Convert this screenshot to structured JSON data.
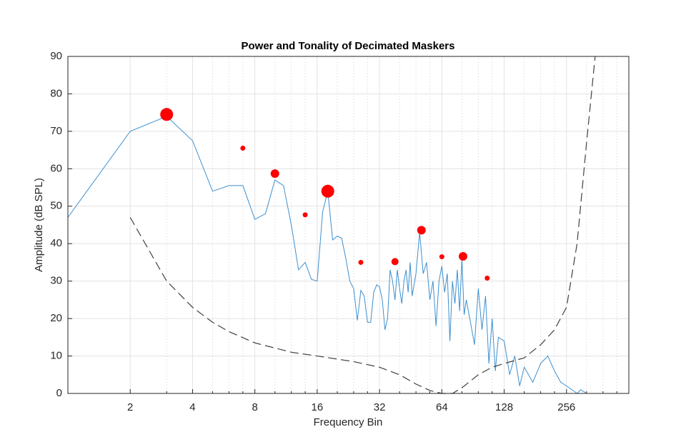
{
  "chart_data": {
    "type": "line",
    "title": "Power and Tonality of Decimated Maskers",
    "x_label": "Frequency Bin",
    "y_label": "Amplitude (dB SPL)",
    "xscale": "log",
    "xlim": [
      1,
      512
    ],
    "ylim": [
      0,
      90
    ],
    "xticks": [
      2,
      4,
      8,
      16,
      32,
      64,
      128,
      256
    ],
    "xminorticks": [
      3,
      5,
      6,
      7,
      10,
      12,
      14,
      20,
      24,
      28,
      40,
      48,
      56,
      80,
      96,
      112,
      160,
      192,
      224,
      320,
      384,
      448
    ],
    "yticks": [
      0,
      10,
      20,
      30,
      40,
      50,
      60,
      70,
      80,
      90
    ],
    "grid": true,
    "series": [
      {
        "type": "line",
        "color": "#3d8fce",
        "dashed": false,
        "x": [
          1,
          2,
          3,
          4,
          5,
          6,
          7,
          8,
          9,
          10,
          11,
          12,
          13,
          14,
          15,
          16,
          17,
          18,
          19,
          20,
          21,
          22,
          23,
          24,
          25,
          26,
          27,
          28,
          29,
          30,
          31,
          32,
          33,
          34,
          35,
          36,
          37,
          38,
          39,
          40,
          41,
          42,
          43,
          44,
          45,
          46,
          48,
          50,
          52,
          54,
          56,
          58,
          60,
          62,
          64,
          66,
          68,
          70,
          72,
          74,
          76,
          78,
          80,
          82,
          84,
          88,
          92,
          96,
          100,
          104,
          108,
          112,
          116,
          120,
          128,
          136,
          144,
          152,
          160,
          176,
          192,
          208,
          224,
          240,
          256,
          272,
          288,
          300,
          320,
          352,
          400,
          512
        ],
        "values": [
          47,
          70,
          74,
          67.5,
          54,
          55.5,
          55.5,
          46.5,
          48,
          57,
          55.5,
          45,
          33,
          35,
          30.5,
          30,
          48.5,
          54,
          41,
          42,
          41.5,
          36,
          30,
          28,
          19.5,
          27.5,
          26,
          19,
          19,
          27,
          29,
          28.5,
          25,
          17,
          20,
          33,
          30,
          25,
          33,
          28,
          24,
          30,
          33,
          27,
          35,
          26,
          32,
          43,
          32,
          35,
          25,
          30,
          18,
          30,
          34,
          27,
          32,
          14,
          30,
          24,
          33,
          22,
          36,
          21,
          25,
          19,
          13,
          28,
          17,
          26,
          8,
          20,
          6,
          15,
          14,
          5,
          10,
          2,
          7,
          3,
          8,
          10,
          6,
          3,
          2,
          1,
          0,
          1,
          0,
          0,
          0,
          0
        ]
      },
      {
        "type": "line",
        "color": "#404040",
        "dashed": true,
        "x": [
          2,
          3,
          4,
          5,
          6,
          8,
          12,
          16,
          24,
          32,
          40,
          48,
          56,
          64,
          72,
          80,
          96,
          112,
          128,
          160,
          192,
          224,
          256,
          288,
          320,
          352
        ],
        "values": [
          47,
          30,
          23,
          19,
          16.5,
          13.5,
          11,
          10,
          8.5,
          7,
          5,
          2.5,
          0.8,
          0,
          0,
          1.5,
          5,
          7,
          8,
          9.5,
          13,
          17,
          23,
          40,
          67,
          90
        ]
      },
      {
        "type": "scatter",
        "color": "#ff0000",
        "x": [
          3,
          7,
          10,
          14,
          18,
          26,
          38,
          51,
          64,
          81,
          106
        ],
        "values": [
          74.5,
          65.5,
          58.7,
          47.7,
          54,
          35,
          35.2,
          43.6,
          36.5,
          36.6,
          30.8
        ],
        "sizes": [
          9,
          3.5,
          6,
          3.5,
          9,
          3.5,
          5,
          6,
          3.5,
          6,
          3.5
        ]
      }
    ]
  }
}
